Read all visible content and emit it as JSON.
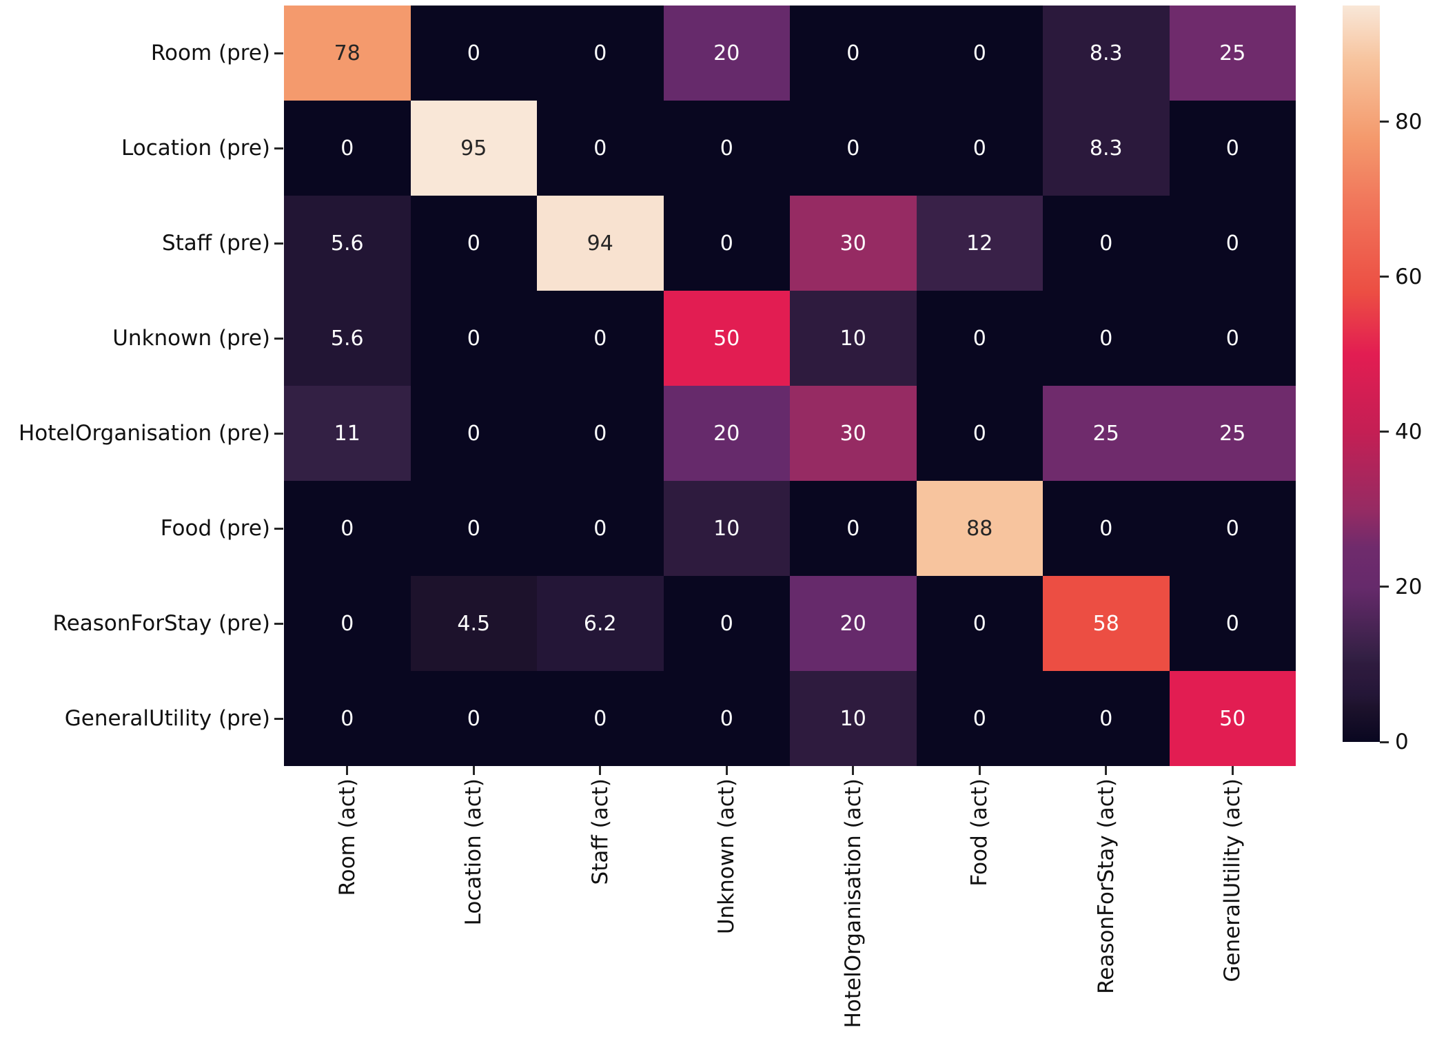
{
  "figure": {
    "background": "#FFFFFF"
  },
  "chart_data": {
    "type": "heatmap",
    "title": "",
    "y_axis": {
      "tick_labels": [
        "Room (pre)",
        "Location (pre)",
        "Staff (pre)",
        "Unknown (pre)",
        "HotelOrganisation (pre)",
        "Food (pre)",
        "ReasonForStay (pre)",
        "GeneralUtility (pre)"
      ]
    },
    "x_axis": {
      "tick_labels": [
        "Room (act)",
        "Location (act)",
        "Staff (act)",
        "Unknown (act)",
        "HotelOrganisation (act)",
        "Food (act)",
        "ReasonForStay (act)",
        "GeneralUtility (act)"
      ],
      "label_rotation_deg": 90
    },
    "values": [
      [
        78,
        0,
        0,
        20,
        0,
        0,
        8.3,
        25
      ],
      [
        0,
        95,
        0,
        0,
        0,
        0,
        8.3,
        0
      ],
      [
        5.6,
        0,
        94,
        0,
        30,
        12,
        0,
        0
      ],
      [
        5.6,
        0,
        0,
        50,
        10,
        0,
        0,
        0
      ],
      [
        11,
        0,
        0,
        20,
        30,
        0,
        25,
        25
      ],
      [
        0,
        0,
        0,
        10,
        0,
        88,
        0,
        0
      ],
      [
        0,
        4.5,
        6.2,
        0,
        20,
        0,
        58,
        0
      ],
      [
        0,
        0,
        0,
        0,
        10,
        0,
        0,
        50
      ]
    ],
    "vmin": 0,
    "vmax": 95,
    "colorbar": {
      "position": "right",
      "ticks": [
        0,
        20,
        40,
        60,
        80
      ]
    },
    "colormap": {
      "name": "rocket-like",
      "anchors": [
        [
          0,
          "#090720"
        ],
        [
          4.5,
          "#1D122C"
        ],
        [
          5.6,
          "#221534"
        ],
        [
          6.2,
          "#241637"
        ],
        [
          8.3,
          "#2B193C"
        ],
        [
          10,
          "#2E1B3E"
        ],
        [
          11,
          "#332044"
        ],
        [
          12,
          "#392148"
        ],
        [
          20,
          "#662A6B"
        ],
        [
          25,
          "#6F2B6C"
        ],
        [
          30,
          "#962B63"
        ],
        [
          40,
          "#C41F54"
        ],
        [
          50,
          "#E21D52"
        ],
        [
          58,
          "#EC4E43"
        ],
        [
          70,
          "#F1785C"
        ],
        [
          78,
          "#F49A6D"
        ],
        [
          88,
          "#F7C49E"
        ],
        [
          94,
          "#F8E2D0"
        ],
        [
          95,
          "#F9E7D7"
        ]
      ]
    },
    "annotation_colors": {
      "on_light_cells": "#262626",
      "on_dark_cells": "#FFFFFF"
    }
  }
}
